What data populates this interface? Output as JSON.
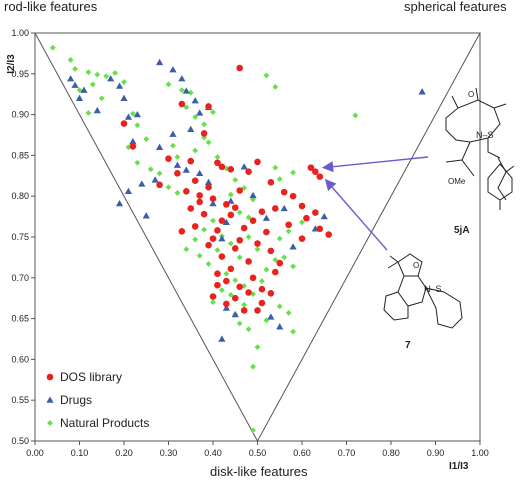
{
  "chart_data": {
    "type": "scatter",
    "corner_labels": {
      "top_left": "rod-like features",
      "top_right": "spherical features",
      "bottom": "disk-like features"
    },
    "xlabel": "I1/I3",
    "ylabel": "I2/I3",
    "xlim": [
      0.0,
      1.0
    ],
    "ylim": [
      0.5,
      1.0
    ],
    "x_ticks": [
      "0.00",
      "0.10",
      "0.20",
      "0.30",
      "0.40",
      "0.50",
      "0.60",
      "0.70",
      "0.80",
      "0.90",
      "1.00"
    ],
    "y_ticks": [
      "0.50",
      "0.55",
      "0.60",
      "0.65",
      "0.70",
      "0.75",
      "0.80",
      "0.85",
      "0.90",
      "0.95",
      "1.00"
    ],
    "grid": false,
    "legend_position": "bottom-left",
    "triangle": [
      [
        0.0,
        1.0
      ],
      [
        1.0,
        1.0
      ],
      [
        0.5,
        0.5
      ]
    ],
    "colors": {
      "dos": "#e8231f",
      "drugs": "#3a5fa8",
      "natural": "#66e04a",
      "arrow": "#6a5ccf"
    },
    "series": [
      {
        "name": "DOS library",
        "marker": "circle",
        "points": [
          [
            0.46,
            0.957
          ],
          [
            0.2,
            0.889
          ],
          [
            0.39,
            0.91
          ],
          [
            0.33,
            0.913
          ],
          [
            0.22,
            0.861
          ],
          [
            0.38,
            0.877
          ],
          [
            0.41,
            0.841
          ],
          [
            0.35,
            0.843
          ],
          [
            0.42,
            0.836
          ],
          [
            0.44,
            0.833
          ],
          [
            0.3,
            0.846
          ],
          [
            0.32,
            0.828
          ],
          [
            0.36,
            0.819
          ],
          [
            0.28,
            0.814
          ],
          [
            0.34,
            0.806
          ],
          [
            0.37,
            0.801
          ],
          [
            0.4,
            0.797
          ],
          [
            0.43,
            0.79
          ],
          [
            0.39,
            0.811
          ],
          [
            0.46,
            0.807
          ],
          [
            0.48,
            0.83
          ],
          [
            0.5,
            0.842
          ],
          [
            0.53,
            0.817
          ],
          [
            0.56,
            0.805
          ],
          [
            0.58,
            0.8
          ],
          [
            0.45,
            0.786
          ],
          [
            0.42,
            0.77
          ],
          [
            0.38,
            0.778
          ],
          [
            0.36,
            0.763
          ],
          [
            0.33,
            0.757
          ],
          [
            0.4,
            0.748
          ],
          [
            0.41,
            0.758
          ],
          [
            0.44,
            0.777
          ],
          [
            0.47,
            0.761
          ],
          [
            0.49,
            0.77
          ],
          [
            0.51,
            0.781
          ],
          [
            0.52,
            0.756
          ],
          [
            0.54,
            0.785
          ],
          [
            0.57,
            0.765
          ],
          [
            0.6,
            0.788
          ],
          [
            0.61,
            0.773
          ],
          [
            0.6,
            0.748
          ],
          [
            0.63,
            0.78
          ],
          [
            0.64,
            0.76
          ],
          [
            0.66,
            0.753
          ],
          [
            0.39,
            0.74
          ],
          [
            0.42,
            0.726
          ],
          [
            0.45,
            0.736
          ],
          [
            0.48,
            0.72
          ],
          [
            0.5,
            0.742
          ],
          [
            0.53,
            0.733
          ],
          [
            0.55,
            0.718
          ],
          [
            0.41,
            0.705
          ],
          [
            0.43,
            0.696
          ],
          [
            0.46,
            0.689
          ],
          [
            0.49,
            0.7
          ],
          [
            0.51,
            0.686
          ],
          [
            0.54,
            0.707
          ],
          [
            0.4,
            0.677
          ],
          [
            0.43,
            0.668
          ],
          [
            0.47,
            0.66
          ],
          [
            0.51,
            0.669
          ],
          [
            0.53,
            0.681
          ],
          [
            0.41,
            0.691
          ],
          [
            0.44,
            0.711
          ],
          [
            0.45,
            0.675
          ],
          [
            0.48,
            0.682
          ],
          [
            0.5,
            0.66
          ],
          [
            0.46,
            0.746
          ],
          [
            0.37,
            0.793
          ],
          [
            0.35,
            0.785
          ],
          [
            0.62,
            0.835
          ],
          [
            0.63,
            0.83
          ],
          [
            0.64,
            0.824
          ]
        ]
      },
      {
        "name": "Drugs",
        "marker": "triangle",
        "points": [
          [
            0.08,
            0.944
          ],
          [
            0.09,
            0.936
          ],
          [
            0.11,
            0.93
          ],
          [
            0.1,
            0.92
          ],
          [
            0.14,
            0.905
          ],
          [
            0.17,
            0.944
          ],
          [
            0.19,
            0.935
          ],
          [
            0.2,
            0.92
          ],
          [
            0.21,
            0.897
          ],
          [
            0.23,
            0.9
          ],
          [
            0.22,
            0.867
          ],
          [
            0.28,
            0.964
          ],
          [
            0.31,
            0.955
          ],
          [
            0.33,
            0.944
          ],
          [
            0.34,
            0.929
          ],
          [
            0.36,
            0.917
          ],
          [
            0.37,
            0.902
          ],
          [
            0.39,
            0.909
          ],
          [
            0.35,
            0.882
          ],
          [
            0.31,
            0.876
          ],
          [
            0.28,
            0.86
          ],
          [
            0.32,
            0.838
          ],
          [
            0.34,
            0.832
          ],
          [
            0.37,
            0.828
          ],
          [
            0.39,
            0.817
          ],
          [
            0.27,
            0.82
          ],
          [
            0.24,
            0.815
          ],
          [
            0.21,
            0.806
          ],
          [
            0.19,
            0.791
          ],
          [
            0.25,
            0.776
          ],
          [
            0.47,
            0.836
          ],
          [
            0.49,
            0.801
          ],
          [
            0.44,
            0.794
          ],
          [
            0.43,
            0.768
          ],
          [
            0.4,
            0.791
          ],
          [
            0.42,
            0.748
          ],
          [
            0.52,
            0.773
          ],
          [
            0.56,
            0.785
          ],
          [
            0.43,
            0.663
          ],
          [
            0.45,
            0.655
          ],
          [
            0.42,
            0.625
          ],
          [
            0.53,
            0.652
          ],
          [
            0.55,
            0.64
          ],
          [
            0.58,
            0.738
          ],
          [
            0.65,
            0.775
          ],
          [
            0.63,
            0.76
          ],
          [
            0.87,
            0.928
          ]
        ]
      },
      {
        "name": "Natural Products",
        "marker": "diamond",
        "points": [
          [
            0.04,
            0.982
          ],
          [
            0.08,
            0.967
          ],
          [
            0.09,
            0.956
          ],
          [
            0.12,
            0.952
          ],
          [
            0.14,
            0.949
          ],
          [
            0.16,
            0.947
          ],
          [
            0.18,
            0.951
          ],
          [
            0.13,
            0.937
          ],
          [
            0.15,
            0.92
          ],
          [
            0.12,
            0.902
          ],
          [
            0.1,
            0.93
          ],
          [
            0.2,
            0.94
          ],
          [
            0.22,
            0.901
          ],
          [
            0.23,
            0.887
          ],
          [
            0.25,
            0.87
          ],
          [
            0.21,
            0.86
          ],
          [
            0.23,
            0.841
          ],
          [
            0.26,
            0.833
          ],
          [
            0.28,
            0.828
          ],
          [
            0.3,
            0.811
          ],
          [
            0.32,
            0.804
          ],
          [
            0.3,
            0.937
          ],
          [
            0.33,
            0.93
          ],
          [
            0.35,
            0.927
          ],
          [
            0.34,
            0.909
          ],
          [
            0.36,
            0.897
          ],
          [
            0.38,
            0.888
          ],
          [
            0.4,
            0.903
          ],
          [
            0.38,
            0.872
          ],
          [
            0.31,
            0.862
          ],
          [
            0.32,
            0.848
          ],
          [
            0.36,
            0.856
          ],
          [
            0.39,
            0.866
          ],
          [
            0.41,
            0.848
          ],
          [
            0.43,
            0.834
          ],
          [
            0.45,
            0.82
          ],
          [
            0.47,
            0.81
          ],
          [
            0.49,
            0.796
          ],
          [
            0.44,
            0.802
          ],
          [
            0.46,
            0.78
          ],
          [
            0.48,
            0.774
          ],
          [
            0.38,
            0.759
          ],
          [
            0.4,
            0.77
          ],
          [
            0.42,
            0.751
          ],
          [
            0.36,
            0.747
          ],
          [
            0.34,
            0.735
          ],
          [
            0.37,
            0.727
          ],
          [
            0.39,
            0.717
          ],
          [
            0.41,
            0.734
          ],
          [
            0.44,
            0.742
          ],
          [
            0.46,
            0.725
          ],
          [
            0.48,
            0.75
          ],
          [
            0.5,
            0.735
          ],
          [
            0.52,
            0.71
          ],
          [
            0.54,
            0.722
          ],
          [
            0.56,
            0.725
          ],
          [
            0.58,
            0.714
          ],
          [
            0.57,
            0.757
          ],
          [
            0.6,
            0.768
          ],
          [
            0.55,
            0.748
          ],
          [
            0.43,
            0.705
          ],
          [
            0.45,
            0.697
          ],
          [
            0.47,
            0.69
          ],
          [
            0.49,
            0.68
          ],
          [
            0.51,
            0.696
          ],
          [
            0.53,
            0.68
          ],
          [
            0.55,
            0.665
          ],
          [
            0.57,
            0.657
          ],
          [
            0.58,
            0.634
          ],
          [
            0.47,
            0.667
          ],
          [
            0.44,
            0.679
          ],
          [
            0.42,
            0.685
          ],
          [
            0.4,
            0.67
          ],
          [
            0.45,
            0.655
          ],
          [
            0.46,
            0.644
          ],
          [
            0.48,
            0.637
          ],
          [
            0.52,
            0.648
          ],
          [
            0.5,
            0.615
          ],
          [
            0.49,
            0.591
          ],
          [
            0.54,
            0.835
          ],
          [
            0.55,
            0.821
          ],
          [
            0.58,
            0.829
          ],
          [
            0.52,
            0.948
          ],
          [
            0.54,
            0.934
          ],
          [
            0.72,
            0.899
          ],
          [
            0.49,
            0.513
          ]
        ]
      }
    ],
    "annotations": [
      {
        "label": "5jA",
        "points_to": [
          0.63,
          0.835
        ]
      },
      {
        "label": "7",
        "points_to": [
          0.64,
          0.826
        ]
      }
    ]
  },
  "structure_text": {
    "s5ja_nso": "N–S",
    "s5ja_o": "O",
    "s5ja_ome": "OMe",
    "s7_nso": "N–S",
    "s7_o": "O"
  }
}
